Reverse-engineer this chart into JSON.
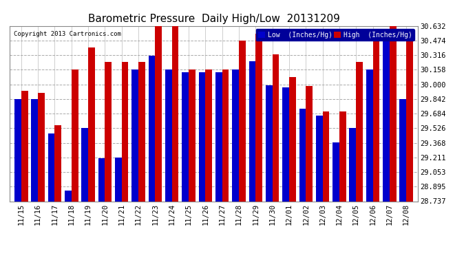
{
  "title": "Barometric Pressure  Daily High/Low  20131209",
  "copyright": "Copyright 2013 Cartronics.com",
  "legend_low": "Low  (Inches/Hg)",
  "legend_high": "High  (Inches/Hg)",
  "categories": [
    "11/15",
    "11/16",
    "11/17",
    "11/18",
    "11/19",
    "11/20",
    "11/21",
    "11/22",
    "11/23",
    "11/24",
    "11/25",
    "11/26",
    "11/27",
    "11/28",
    "11/29",
    "11/30",
    "12/01",
    "12/02",
    "12/03",
    "12/04",
    "12/05",
    "12/06",
    "12/07",
    "12/08"
  ],
  "low_values": [
    29.84,
    29.84,
    29.47,
    28.85,
    29.53,
    29.2,
    29.21,
    30.16,
    30.31,
    30.16,
    30.13,
    30.13,
    30.13,
    30.16,
    30.25,
    29.99,
    29.97,
    29.74,
    29.66,
    29.37,
    29.53,
    30.16,
    30.47,
    29.84
  ],
  "high_values": [
    29.93,
    29.91,
    29.56,
    30.16,
    30.4,
    30.24,
    30.24,
    30.24,
    30.63,
    30.63,
    30.16,
    30.16,
    30.16,
    30.47,
    30.55,
    30.32,
    30.08,
    29.98,
    29.71,
    29.71,
    30.24,
    30.47,
    30.63,
    30.55
  ],
  "ymin": 28.737,
  "ymax": 30.632,
  "yticks": [
    28.737,
    28.895,
    29.053,
    29.211,
    29.368,
    29.526,
    29.684,
    29.842,
    30.0,
    30.158,
    30.316,
    30.474,
    30.632
  ],
  "bar_color_low": "#0000cc",
  "bar_color_high": "#cc0000",
  "background_color": "#ffffff",
  "grid_color": "#aaaaaa",
  "title_fontsize": 11,
  "tick_fontsize": 7.5,
  "bar_width": 0.4,
  "legend_bg": "#000099"
}
